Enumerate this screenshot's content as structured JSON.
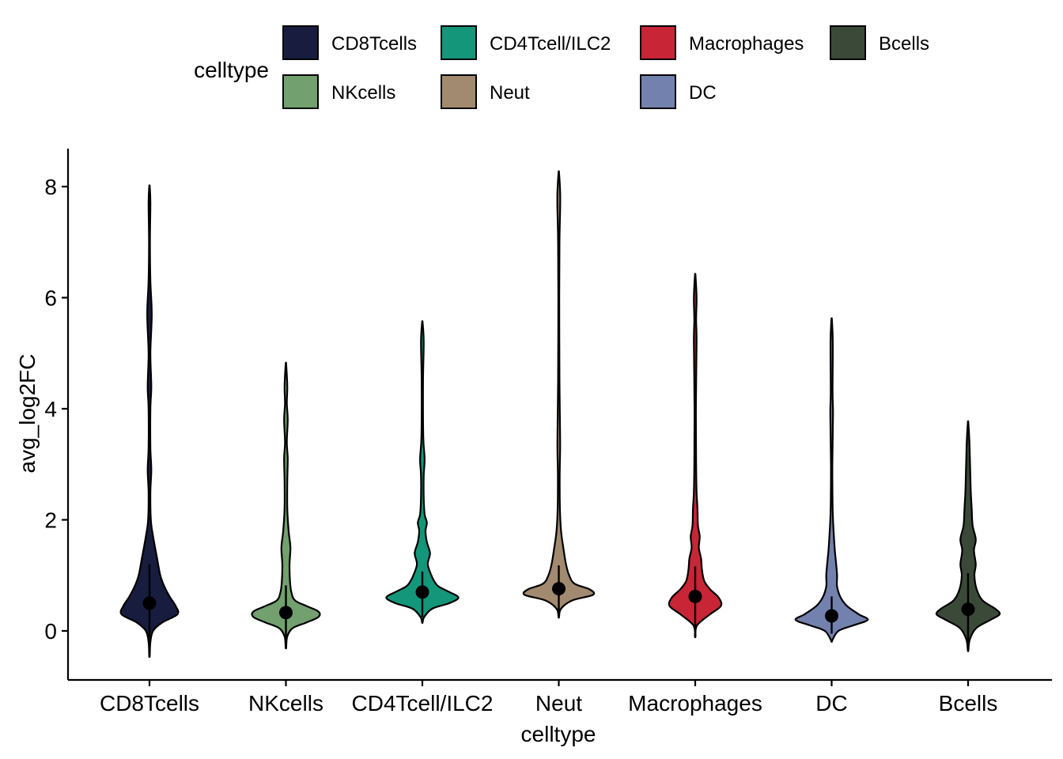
{
  "chart_data": {
    "type": "violin",
    "xlabel": "celltype",
    "ylabel": "avg_log2FC",
    "ylim": [
      -0.85,
      8.65
    ],
    "yticks": [
      0,
      2,
      4,
      6,
      8
    ],
    "grid": false,
    "legend": {
      "title": "celltype",
      "placement": "top",
      "entries": [
        {
          "label": "CD8Tcells",
          "color": "#181C3F"
        },
        {
          "label": "CD4Tcell/ILC2",
          "color": "#13967A"
        },
        {
          "label": "Macrophages",
          "color": "#C82536"
        },
        {
          "label": "Bcells",
          "color": "#3B4938"
        },
        {
          "label": "NKcells",
          "color": "#72A06E"
        },
        {
          "label": "Neut",
          "color": "#A28A70"
        },
        {
          "label": "DC",
          "color": "#7381AE"
        }
      ]
    },
    "categories": [
      "CD8Tcells",
      "NKcells",
      "CD4Tcell/ILC2",
      "Neut",
      "Macrophages",
      "DC",
      "Bcells"
    ],
    "series": [
      {
        "category": "CD8Tcells",
        "color": "#181C3F",
        "ymin": -0.45,
        "ymax": 8.0,
        "point": 0.5,
        "range": [
          -0.45,
          1.2
        ],
        "profile": [
          [
            -0.45,
            0.005
          ],
          [
            -0.2,
            0.02
          ],
          [
            0,
            0.08
          ],
          [
            0.15,
            0.28
          ],
          [
            0.3,
            0.62
          ],
          [
            0.45,
            0.58
          ],
          [
            0.6,
            0.46
          ],
          [
            0.8,
            0.33
          ],
          [
            1.0,
            0.24
          ],
          [
            1.3,
            0.17
          ],
          [
            1.7,
            0.08
          ],
          [
            2.0,
            0.03
          ],
          [
            2.5,
            0.02
          ],
          [
            2.9,
            0.04
          ],
          [
            3.3,
            0.02
          ],
          [
            4.0,
            0.02
          ],
          [
            4.4,
            0.04
          ],
          [
            5.0,
            0.02
          ],
          [
            5.7,
            0.05
          ],
          [
            6.3,
            0.02
          ],
          [
            7.0,
            0.01
          ],
          [
            7.7,
            0.02
          ],
          [
            8.0,
            0.005
          ]
        ]
      },
      {
        "category": "NKcells",
        "color": "#72A06E",
        "ymin": -0.3,
        "ymax": 4.8,
        "point": 0.33,
        "range": [
          -0.3,
          0.82
        ],
        "profile": [
          [
            -0.3,
            0.005
          ],
          [
            -0.1,
            0.03
          ],
          [
            0.05,
            0.15
          ],
          [
            0.15,
            0.45
          ],
          [
            0.25,
            0.72
          ],
          [
            0.35,
            0.72
          ],
          [
            0.45,
            0.45
          ],
          [
            0.55,
            0.2
          ],
          [
            0.7,
            0.12
          ],
          [
            0.9,
            0.09
          ],
          [
            1.2,
            0.08
          ],
          [
            1.5,
            0.1
          ],
          [
            1.8,
            0.06
          ],
          [
            2.2,
            0.03
          ],
          [
            2.7,
            0.03
          ],
          [
            3.1,
            0.04
          ],
          [
            3.4,
            0.02
          ],
          [
            3.8,
            0.04
          ],
          [
            4.1,
            0.02
          ],
          [
            4.4,
            0.03
          ],
          [
            4.8,
            0.005
          ]
        ]
      },
      {
        "category": "CD4Tcell/ILC2",
        "color": "#13967A",
        "ymin": 0.15,
        "ymax": 5.55,
        "point": 0.7,
        "range": [
          0.25,
          1.07
        ],
        "profile": [
          [
            0.15,
            0.005
          ],
          [
            0.25,
            0.04
          ],
          [
            0.4,
            0.22
          ],
          [
            0.5,
            0.6
          ],
          [
            0.6,
            0.8
          ],
          [
            0.7,
            0.6
          ],
          [
            0.8,
            0.36
          ],
          [
            0.9,
            0.26
          ],
          [
            1.0,
            0.2
          ],
          [
            1.2,
            0.12
          ],
          [
            1.4,
            0.17
          ],
          [
            1.6,
            0.1
          ],
          [
            1.8,
            0.07
          ],
          [
            1.95,
            0.1
          ],
          [
            2.1,
            0.05
          ],
          [
            2.4,
            0.03
          ],
          [
            2.8,
            0.03
          ],
          [
            3.1,
            0.05
          ],
          [
            3.5,
            0.02
          ],
          [
            4.5,
            0.015
          ],
          [
            5.2,
            0.03
          ],
          [
            5.55,
            0.005
          ]
        ]
      },
      {
        "category": "Neut",
        "color": "#A28A70",
        "ymin": 0.25,
        "ymax": 8.25,
        "point": 0.76,
        "range": [
          0.35,
          1.18
        ],
        "profile": [
          [
            0.25,
            0.005
          ],
          [
            0.4,
            0.05
          ],
          [
            0.55,
            0.3
          ],
          [
            0.65,
            0.76
          ],
          [
            0.75,
            0.68
          ],
          [
            0.85,
            0.35
          ],
          [
            1.0,
            0.23
          ],
          [
            1.2,
            0.16
          ],
          [
            1.5,
            0.1
          ],
          [
            1.8,
            0.05
          ],
          [
            2.2,
            0.025
          ],
          [
            2.8,
            0.02
          ],
          [
            3.3,
            0.03
          ],
          [
            3.8,
            0.025
          ],
          [
            4.5,
            0.015
          ],
          [
            6.0,
            0.01
          ],
          [
            7.0,
            0.015
          ],
          [
            7.6,
            0.03
          ],
          [
            7.9,
            0.03
          ],
          [
            8.25,
            0.005
          ]
        ]
      },
      {
        "category": "Macrophages",
        "color": "#C82536",
        "ymin": -0.1,
        "ymax": 6.4,
        "point": 0.62,
        "range": [
          0.05,
          1.16
        ],
        "profile": [
          [
            -0.1,
            0.005
          ],
          [
            0.1,
            0.04
          ],
          [
            0.3,
            0.33
          ],
          [
            0.45,
            0.57
          ],
          [
            0.6,
            0.52
          ],
          [
            0.75,
            0.33
          ],
          [
            0.9,
            0.2
          ],
          [
            1.1,
            0.15
          ],
          [
            1.3,
            0.13
          ],
          [
            1.5,
            0.08
          ],
          [
            1.7,
            0.1
          ],
          [
            1.9,
            0.06
          ],
          [
            2.2,
            0.05
          ],
          [
            2.5,
            0.03
          ],
          [
            3.0,
            0.02
          ],
          [
            4.0,
            0.015
          ],
          [
            5.2,
            0.03
          ],
          [
            5.6,
            0.02
          ],
          [
            6.0,
            0.03
          ],
          [
            6.4,
            0.005
          ]
        ]
      },
      {
        "category": "DC",
        "color": "#7381AE",
        "ymin": -0.18,
        "ymax": 5.6,
        "point": 0.27,
        "range": [
          -0.05,
          0.62
        ],
        "profile": [
          [
            -0.18,
            0.005
          ],
          [
            0,
            0.15
          ],
          [
            0.1,
            0.48
          ],
          [
            0.2,
            0.8
          ],
          [
            0.3,
            0.6
          ],
          [
            0.45,
            0.34
          ],
          [
            0.6,
            0.2
          ],
          [
            0.8,
            0.12
          ],
          [
            1.0,
            0.12
          ],
          [
            1.2,
            0.1
          ],
          [
            1.45,
            0.07
          ],
          [
            1.7,
            0.05
          ],
          [
            2.0,
            0.03
          ],
          [
            2.3,
            0.02
          ],
          [
            3.0,
            0.015
          ],
          [
            3.9,
            0.03
          ],
          [
            4.3,
            0.02
          ],
          [
            5.2,
            0.025
          ],
          [
            5.6,
            0.005
          ]
        ]
      },
      {
        "category": "Bcells",
        "color": "#3B4938",
        "ymin": -0.35,
        "ymax": 3.75,
        "point": 0.39,
        "range": [
          -0.3,
          1.04
        ],
        "profile": [
          [
            -0.35,
            0.005
          ],
          [
            -0.15,
            0.04
          ],
          [
            0.05,
            0.18
          ],
          [
            0.2,
            0.5
          ],
          [
            0.3,
            0.7
          ],
          [
            0.4,
            0.6
          ],
          [
            0.55,
            0.32
          ],
          [
            0.75,
            0.19
          ],
          [
            1.0,
            0.14
          ],
          [
            1.2,
            0.17
          ],
          [
            1.45,
            0.13
          ],
          [
            1.65,
            0.17
          ],
          [
            1.9,
            0.1
          ],
          [
            2.2,
            0.08
          ],
          [
            2.5,
            0.06
          ],
          [
            2.8,
            0.05
          ],
          [
            3.1,
            0.04
          ],
          [
            3.4,
            0.03
          ],
          [
            3.75,
            0.005
          ]
        ]
      }
    ]
  }
}
